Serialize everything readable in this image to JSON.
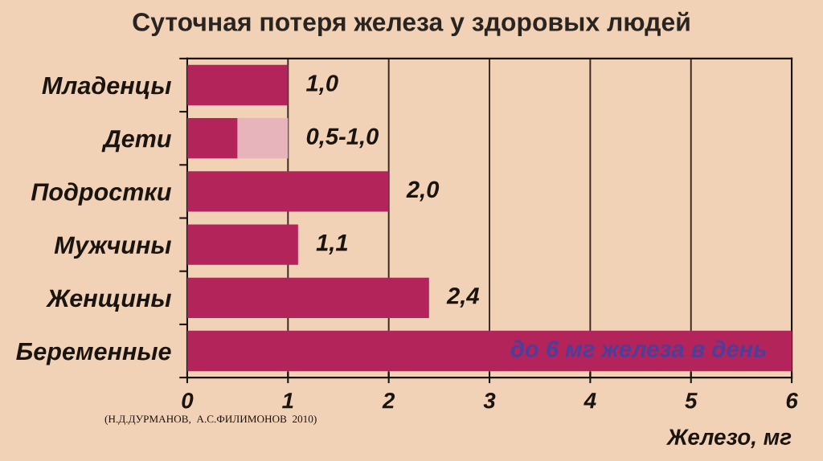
{
  "chart_data": {
    "type": "bar",
    "orientation": "horizontal",
    "stacked": true,
    "title": "Суточная потеря железа у здоровых людей",
    "xlabel": "Железо, мг",
    "categories": [
      "Младенцы",
      "Дети",
      "Подростки",
      "Мужчины",
      "Женщины",
      "Беременные"
    ],
    "series": [
      {
        "color": "#b3245a",
        "values": [
          1.0,
          0.5,
          2.0,
          1.1,
          2.4,
          6
        ],
        "value_labels": [
          "1,0",
          "0,5-1,0",
          "2,0",
          "1,1",
          "2,4",
          null
        ]
      },
      {
        "color": "#e8b4bc",
        "values": [
          null,
          0.5,
          null,
          null,
          null,
          null
        ]
      }
    ],
    "xlim": [
      0,
      6
    ],
    "xticks": [
      0,
      1,
      2,
      3,
      4,
      5,
      6
    ],
    "grid": "x",
    "annotations": [
      {
        "text": "до 6 мг железа в день",
        "x": 6,
        "y": "Беременные"
      },
      "(Н.Д.ДУРМАНОВ,  А.С.ФИЛИМОНОВ  2010)"
    ]
  }
}
